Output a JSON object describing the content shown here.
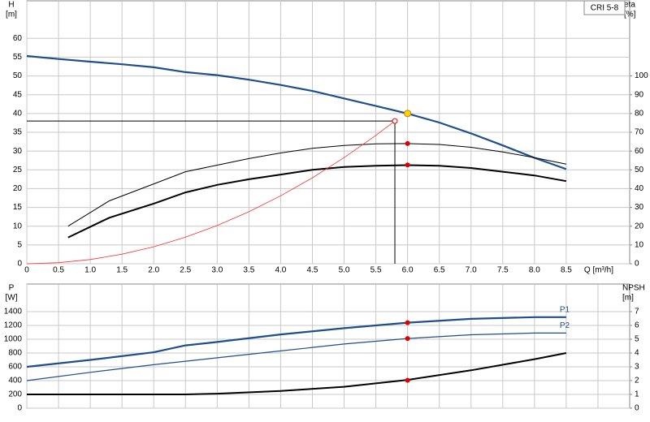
{
  "chart_data": [
    {
      "type": "line",
      "ylabel": "H",
      "yunit": "[m]",
      "y2label": "eta",
      "y2unit": "[%]",
      "xlabel": "Q [m³/h]",
      "badge": "CRI 5-8",
      "xlim": [
        0,
        9.5
      ],
      "ylim": [
        0,
        70
      ],
      "y2lim": [
        0,
        140
      ],
      "xticks": [
        0,
        0.5,
        {
          "value": 1,
          "label": "1.0"
        },
        1.5,
        {
          "value": 2,
          "label": "2.0"
        },
        2.5,
        {
          "value": 3,
          "label": "3.0"
        },
        3.5,
        {
          "value": 4,
          "label": "4.0"
        },
        4.5,
        {
          "value": 5,
          "label": "5.0"
        },
        5.5,
        {
          "value": 6,
          "label": "6.0"
        },
        6.5,
        {
          "value": 7,
          "label": "7.0"
        },
        7.5,
        {
          "value": 8,
          "label": "8.0"
        },
        8.5
      ],
      "yticks": [
        0,
        5,
        10,
        15,
        20,
        25,
        30,
        35,
        40,
        45,
        50,
        55,
        60
      ],
      "y2ticks": [
        0,
        10,
        20,
        30,
        40,
        50,
        60,
        70,
        80,
        90,
        100
      ],
      "xtick_labels": true,
      "grid": true,
      "series": [
        {
          "color": "#1f4e8c",
          "line_width": 2.2,
          "x": [
            0,
            0.5,
            1,
            1.5,
            2,
            2.5,
            3,
            3.5,
            4,
            4.5,
            5,
            5.5,
            6,
            6.5,
            7,
            7.5,
            8,
            8.5
          ],
          "values": [
            55.3,
            54.5,
            53.8,
            53.1,
            52.3,
            51.0,
            50.2,
            49.0,
            47.6,
            46.0,
            44.0,
            42.0,
            40.0,
            37.6,
            34.7,
            31.5,
            28.2,
            25.2
          ]
        },
        {
          "color": "#000000",
          "line_width": 1,
          "axis": "y2",
          "x": [
            0.65,
            1.3,
            2,
            2.5,
            3,
            3.5,
            4,
            4.5,
            5,
            5.5,
            6,
            6.5,
            7,
            7.5,
            8,
            8.5
          ],
          "values": [
            20,
            33.5,
            42.5,
            49,
            52.5,
            56,
            59,
            61.5,
            63,
            63.8,
            64,
            63.5,
            62,
            59.5,
            56.5,
            53
          ]
        },
        {
          "color": "#000000",
          "line_width": 2,
          "axis": "y2",
          "x": [
            0.65,
            1.3,
            2,
            2.5,
            3,
            3.5,
            4,
            4.5,
            5,
            5.5,
            6,
            6.5,
            7,
            7.5,
            8,
            8.5
          ],
          "values": [
            14,
            24.5,
            32,
            38,
            42,
            45,
            47.5,
            50,
            51.5,
            52.2,
            52.5,
            52.2,
            51,
            49,
            47,
            44
          ]
        },
        {
          "color": "#ff3030",
          "line_width": 0.8,
          "x": [
            0,
            0.5,
            1,
            1.5,
            2,
            2.5,
            3,
            3.5,
            4,
            4.5,
            5,
            5.5,
            5.8
          ],
          "values": [
            0,
            0.28,
            1.13,
            2.54,
            4.52,
            7.06,
            10.17,
            13.84,
            18.08,
            22.88,
            28.25,
            34.18,
            38
          ]
        }
      ],
      "points": [
        {
          "x": 6,
          "y": 40,
          "color": "#ffd200"
        },
        {
          "x": 6,
          "y": 32,
          "color": "#e00000"
        },
        {
          "x": 6,
          "y": 26.3,
          "color": "#e00000"
        }
      ],
      "duty_point": {
        "x": 5.8,
        "y": 38
      }
    },
    {
      "type": "line",
      "ylabel": "P",
      "yunit": "[W]",
      "y2label": "NPSH",
      "y2unit": "[m]",
      "xlim": [
        0,
        9.5
      ],
      "ylim": [
        0,
        1800
      ],
      "y2lim": [
        0,
        9
      ],
      "xticks": [
        0,
        0.5,
        1,
        1.5,
        2,
        2.5,
        3,
        3.5,
        4,
        4.5,
        5,
        5.5,
        6,
        6.5,
        7,
        7.5,
        8,
        8.5,
        9
      ],
      "yticks": [
        0,
        200,
        400,
        600,
        800,
        1000,
        1200,
        1400
      ],
      "y2ticks": [
        0,
        1,
        2,
        3,
        4,
        5,
        6,
        7
      ],
      "xtick_labels": false,
      "grid": true,
      "series": [
        {
          "name": "P1",
          "color": "#1f4e8c",
          "line_width": 2.2,
          "x": [
            0,
            1,
            2,
            2.5,
            3,
            4,
            5,
            6,
            7,
            8,
            8.5
          ],
          "values": [
            600,
            700,
            810,
            910,
            960,
            1070,
            1160,
            1240,
            1295,
            1320,
            1320
          ]
        },
        {
          "name": "P2",
          "color": "#1f4e8c",
          "line_width": 1.2,
          "x": [
            0,
            1,
            2,
            3,
            4,
            5,
            6,
            7,
            8,
            8.5
          ],
          "values": [
            400,
            520,
            630,
            730,
            830,
            930,
            1010,
            1065,
            1090,
            1090
          ]
        },
        {
          "color": "#000000",
          "line_width": 2,
          "axis": "y2",
          "x": [
            0,
            1,
            2,
            2.5,
            3,
            4,
            5,
            6,
            7,
            8,
            8.5
          ],
          "values": [
            1,
            1,
            1,
            1,
            1.05,
            1.25,
            1.55,
            2.05,
            2.75,
            3.55,
            4.0
          ]
        }
      ],
      "points": [
        {
          "x": 6,
          "y": 1240,
          "color": "#e00000"
        },
        {
          "x": 6,
          "y": 1010,
          "color": "#e00000"
        },
        {
          "x": 6,
          "y": 405,
          "color": "#e00000"
        }
      ]
    }
  ]
}
